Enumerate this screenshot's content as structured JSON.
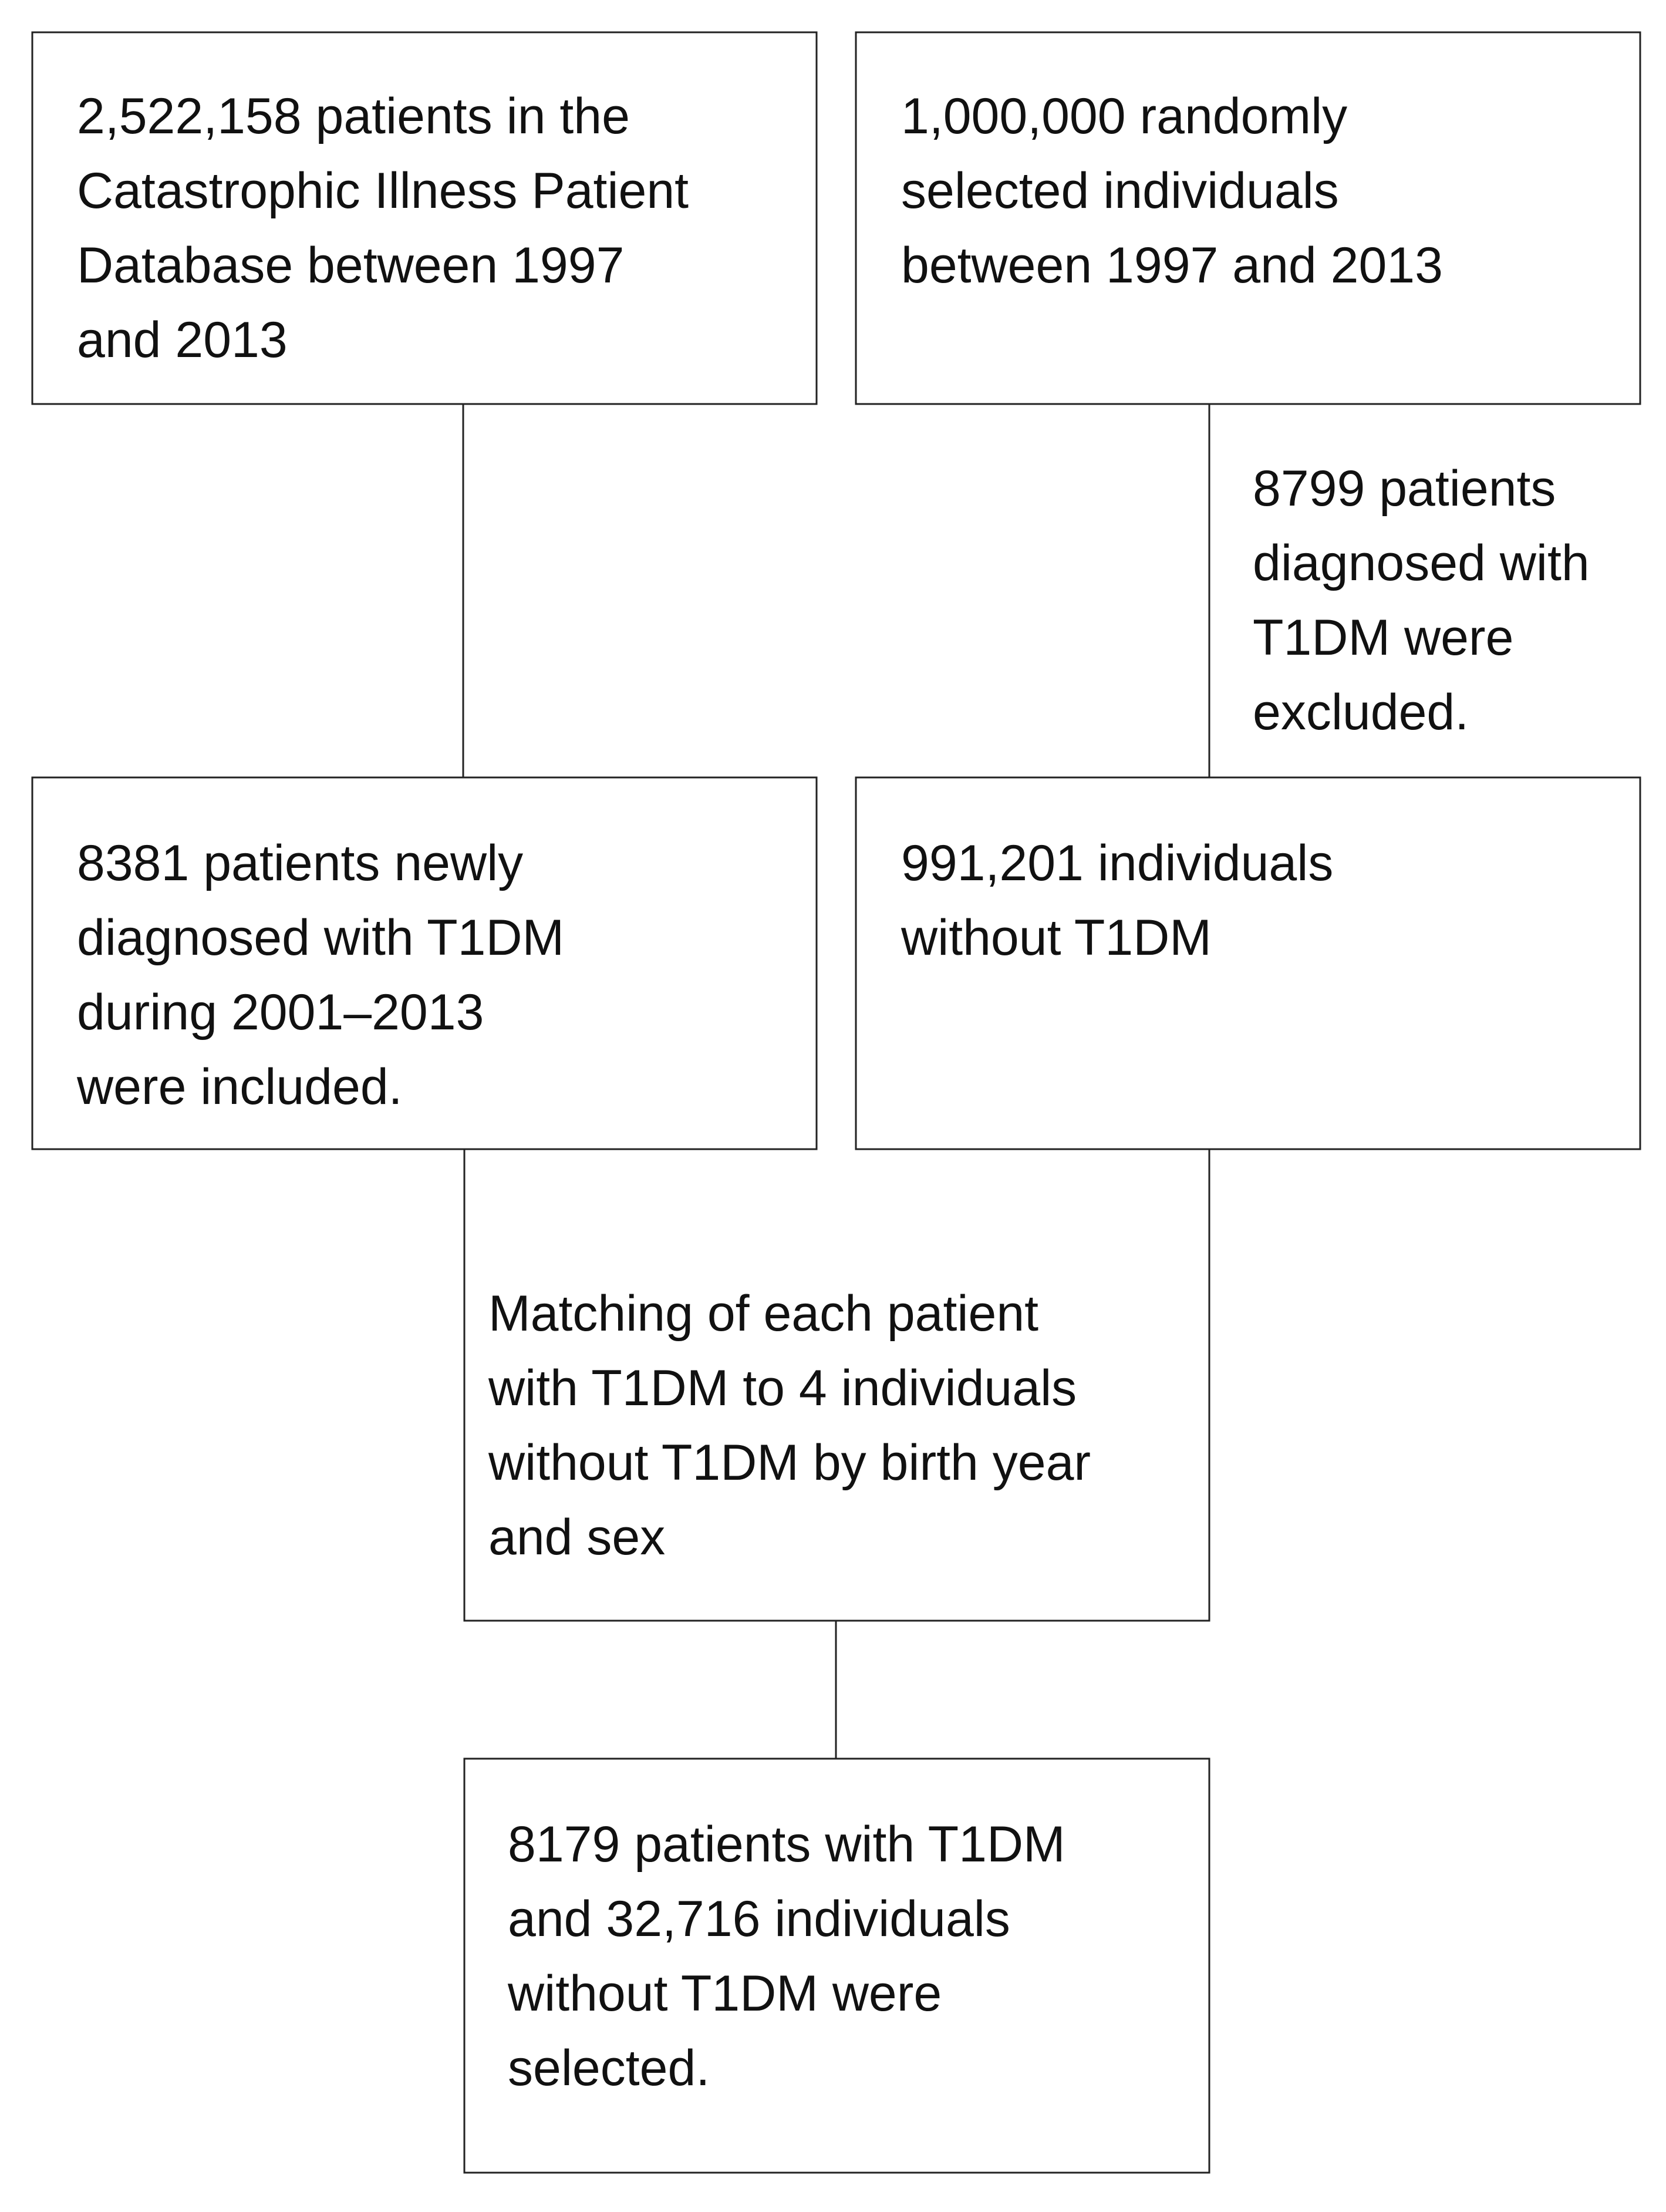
{
  "nodes": [
    {
      "lines": [
        "2,522,158 patients in the",
        "Catastrophic Illness Patient",
        "Database between 1997",
        "and 2013"
      ]
    },
    {
      "lines": [
        "1,000,000 randomly",
        "selected individuals",
        "between 1997 and 2013"
      ]
    },
    {
      "lines": [
        "8381 patients newly",
        "diagnosed with T1DM",
        "during 2001–2013",
        "were included."
      ]
    },
    {
      "lines": [
        "991,201 individuals",
        "without T1DM"
      ]
    },
    {
      "lines": [
        "Matching of each patient",
        "with T1DM to 4 individuals",
        "without T1DM by birth year",
        "and sex"
      ]
    },
    {
      "lines": [
        "8179 patients with T1DM",
        "and 32,716 individuals",
        "without T1DM were",
        "selected."
      ]
    }
  ],
  "annotations": [
    {
      "lines": [
        "8799 patients",
        "diagnosed with",
        "T1DM were",
        "excluded."
      ]
    }
  ]
}
